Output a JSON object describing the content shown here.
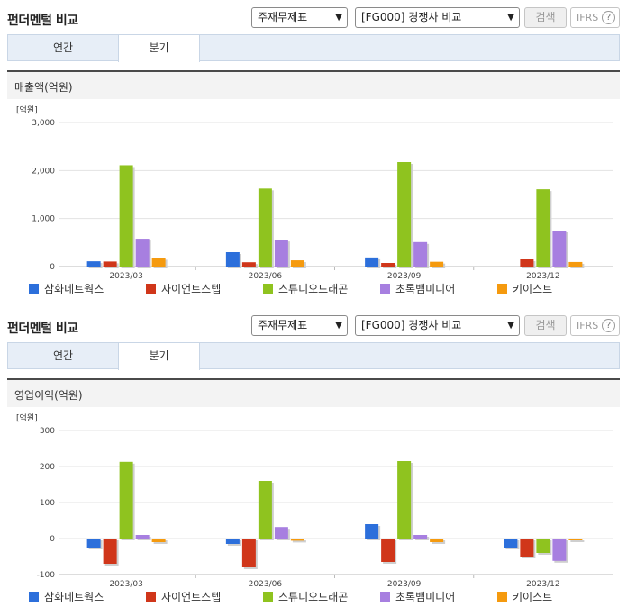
{
  "header": {
    "title": "펀더멘털 비교",
    "select1_value": "주재무제표",
    "select2_value": "[FG000] 경쟁사 비교",
    "search_label": "검색",
    "ifrs_label": "IFRS",
    "help_glyph": "?"
  },
  "tabs": [
    "연간",
    "분기"
  ],
  "selected_tab": "분기",
  "series_names": [
    "삼화네트웍스",
    "자이언트스텝",
    "스튜디오드래곤",
    "초록뱀미디어",
    "키이스트"
  ],
  "series_colors": [
    "#2c6fdb",
    "#d0361a",
    "#8fc31f",
    "#a77fe0",
    "#f59a0e"
  ],
  "panels": [
    {
      "section_title": "매출액(억원)",
      "chart_data": {
        "type": "bar",
        "unit_label": "[억원]",
        "categories": [
          "2023/03",
          "2023/06",
          "2023/09",
          "2023/12"
        ],
        "ylim": [
          0,
          3000
        ],
        "yticks": [
          0,
          1000,
          2000,
          3000
        ],
        "ytick_labels": [
          "0",
          "1,000",
          "2,000",
          "3,000"
        ],
        "series": [
          {
            "name": "삼화네트웍스",
            "values": [
              110,
              300,
              190,
              0
            ]
          },
          {
            "name": "자이언트스텝",
            "values": [
              105,
              90,
              75,
              150
            ]
          },
          {
            "name": "스튜디오드래곤",
            "values": [
              2110,
              1625,
              2175,
              1610
            ]
          },
          {
            "name": "초록뱀미디어",
            "values": [
              580,
              560,
              510,
              750
            ]
          },
          {
            "name": "키이스트",
            "values": [
              180,
              130,
              100,
              95
            ]
          }
        ]
      }
    },
    {
      "section_title": "영업이익(억원)",
      "chart_data": {
        "type": "bar",
        "unit_label": "[억원]",
        "categories": [
          "2023/03",
          "2023/06",
          "2023/09",
          "2023/12"
        ],
        "ylim": [
          -100,
          300
        ],
        "yticks": [
          -100,
          0,
          100,
          200,
          300
        ],
        "ytick_labels": [
          "-100",
          "0",
          "100",
          "200",
          "300"
        ],
        "series": [
          {
            "name": "삼화네트웍스",
            "values": [
              -25,
              -15,
              40,
              -25
            ]
          },
          {
            "name": "자이언트스텝",
            "values": [
              -70,
              -80,
              -65,
              -50
            ]
          },
          {
            "name": "스튜디오드래곤",
            "values": [
              213,
              160,
              215,
              -40
            ]
          },
          {
            "name": "초록뱀미디어",
            "values": [
              10,
              32,
              10,
              -62
            ]
          },
          {
            "name": "키이스트",
            "values": [
              -10,
              -6,
              -10,
              -5
            ]
          }
        ]
      }
    }
  ]
}
